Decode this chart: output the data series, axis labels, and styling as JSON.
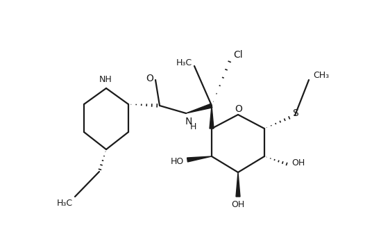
{
  "bg_color": "#ffffff",
  "line_color": "#1a1a1a",
  "lw": 1.6,
  "figsize": [
    5.49,
    3.54
  ],
  "dpi": 100,
  "xlim": [
    0,
    549
  ],
  "ylim": [
    0,
    354
  ]
}
